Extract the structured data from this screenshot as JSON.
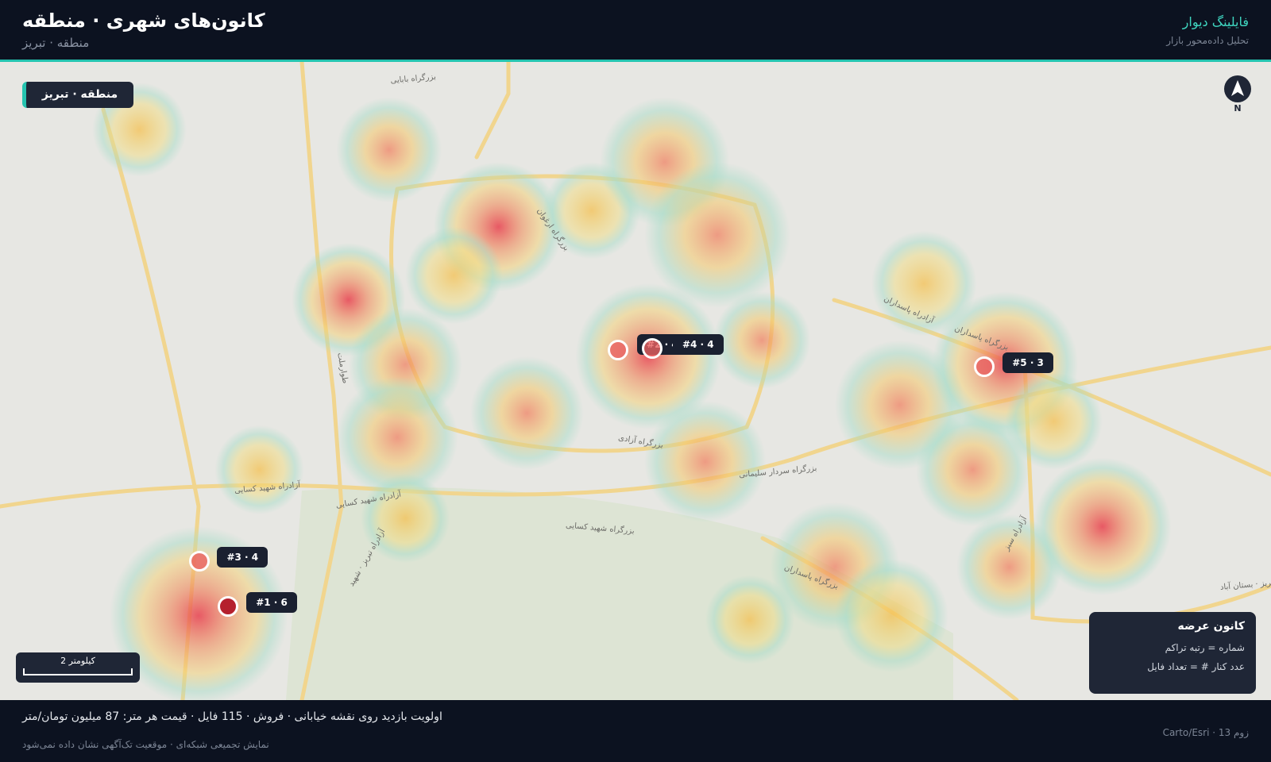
{
  "header": {
    "title": "کانون‌های شهری · منطقه",
    "subtitle": "منطقه · تبریز",
    "brand": "فایلینگ دیوار",
    "tagline": "تحلیل داده‌محور بازار"
  },
  "map": {
    "area_badge": "منطقه · تبریز",
    "north": "N",
    "scale_label": "2 کیلومتر",
    "road_labels": [
      "بزرگراه بابایی",
      "بزرگراه ارغوان",
      "آزادراه پاسداران",
      "بزرگراه پاسداران",
      "بزرگراه آزادی",
      "بزرگراه سردار سلیمانی",
      "آزادراه شهید کسایی",
      "بزرگراه پاسداران",
      "طوارملت",
      "آزادراه تبریز · شهید",
      "آزادراه شهید کسایی",
      "بزرگراه شهید کسایی",
      "تبریز · بستان آباد",
      "آزادراه سبز"
    ],
    "hotspots": [
      {
        "label": "#1 · 6"
      },
      {
        "label": "#2 · 4"
      },
      {
        "label": "#3 · 4"
      },
      {
        "label": "#4 · 4"
      },
      {
        "label": "#5 · 3"
      }
    ],
    "legend": {
      "title": "کانون عرضه",
      "items": [
        "شماره = رتبه تراکم",
        "عدد کنار # = تعداد فایل"
      ]
    }
  },
  "footer": {
    "summary": "اولویت بازدید روی نقشه خیابانی · فروش · 115 فایل · قیمت هر متر: 87 میلیون تومان/متر",
    "note": "نمایش تجمیعی شبکه‌ای · موقعیت تک‌آگهی نشان داده نمی‌شود",
    "attribution": "زوم 13 · Carto/Esri"
  }
}
